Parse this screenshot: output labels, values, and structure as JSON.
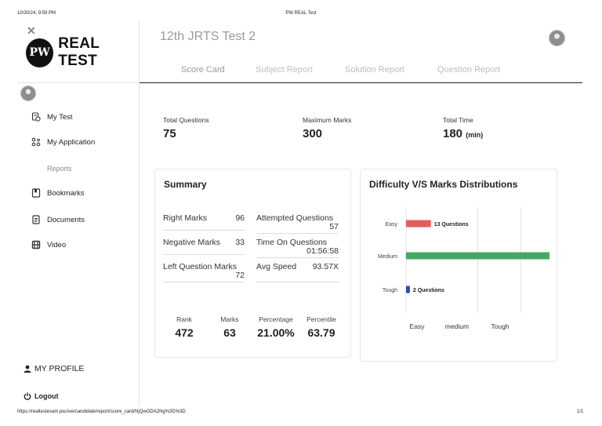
{
  "print_header": {
    "datetime": "10/30/24, 9:59 PM",
    "title": "PW REAL Test"
  },
  "print_footer": {
    "url": "https://realtestexam.pw.live/candidate/report/score_card/NjQwODA2Ng%3D%3D",
    "page": "1/1"
  },
  "sidebar": {
    "close_icon": "close-icon",
    "logo_mark": "PW",
    "logo_text": "REAL TEST",
    "items": [
      {
        "label": "My Test",
        "icon": "test-icon"
      },
      {
        "label": "My Application",
        "icon": "application-icon"
      },
      {
        "label": "Bookmarks",
        "icon": "bookmark-icon"
      },
      {
        "label": "Documents",
        "icon": "document-icon"
      },
      {
        "label": "Video",
        "icon": "video-icon"
      }
    ],
    "section_label": "Reports",
    "profile_label": "MY PROFILE",
    "logout_label": "Logout"
  },
  "main": {
    "title": "12th JRTS Test 2",
    "tabs": [
      {
        "label": "Score Card",
        "active": true
      },
      {
        "label": "Subject Report",
        "active": false
      },
      {
        "label": "Solution Report",
        "active": false
      },
      {
        "label": "Question Report",
        "active": false
      }
    ],
    "stats": {
      "total_questions": {
        "label": "Total Questions",
        "value": "75"
      },
      "maximum_marks": {
        "label": "Maximum Marks",
        "value": "300"
      },
      "total_time": {
        "label": "Total Time",
        "value": "180",
        "unit": "(min)"
      }
    },
    "summary": {
      "title": "Summary",
      "right_marks": {
        "label": "Right Marks",
        "value": "96"
      },
      "negative_marks": {
        "label": "Negative Marks",
        "value": "33"
      },
      "left_question_marks": {
        "label": "Left Question Marks",
        "value": "72"
      },
      "attempted_questions": {
        "label": "Attempted Questions",
        "value": "57"
      },
      "time_on_questions": {
        "label": "Time On Questions",
        "value": "01:56:58"
      },
      "avg_speed": {
        "label": "Avg Speed",
        "value": "93.57X"
      },
      "rank": {
        "label": "Rank",
        "value": "472"
      },
      "marks": {
        "label": "Marks",
        "value": "63"
      },
      "percentage": {
        "label": "Percentage",
        "value": "21.00%"
      },
      "percentile": {
        "label": "Percentile",
        "value": "63.79"
      }
    }
  },
  "chart_data": {
    "type": "bar",
    "orientation": "horizontal",
    "title": "Difficulty V/S Marks Distributions",
    "categories": [
      "Easy",
      "Medium",
      "Tough"
    ],
    "values": [
      13,
      75,
      2
    ],
    "data_labels": [
      "13 Questions",
      "",
      "2 Questions"
    ],
    "colors": [
      "#e35d5d",
      "#43a865",
      "#2f48a8"
    ],
    "xtick_labels": [
      "Easy",
      "medium",
      "Tough"
    ],
    "xlim": [
      0,
      75
    ],
    "grid": true
  }
}
